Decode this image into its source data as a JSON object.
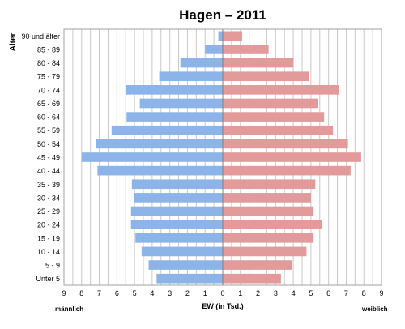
{
  "chart_data": {
    "type": "bar",
    "orientation": "horizontal",
    "layout": "population-pyramid",
    "title": "Hagen – 2011",
    "xlabel": "EW (in Tsd.)",
    "ylabel": "Alter",
    "left_label": "männlich",
    "right_label": "weiblich",
    "x_tick_labels": [
      "9",
      "8",
      "7",
      "6",
      "5",
      "4",
      "3",
      "2",
      "1",
      "0",
      "1",
      "2",
      "3",
      "4",
      "5",
      "6",
      "7",
      "8",
      "9"
    ],
    "xlim": [
      -9,
      9
    ],
    "grid": true,
    "categories": [
      "90 und älter",
      "85 - 89",
      "80 - 84",
      "75 - 79",
      "70 - 74",
      "65 - 69",
      "60 - 64",
      "55 - 59",
      "50 - 54",
      "45 - 49",
      "40 - 44",
      "35 - 39",
      "30 - 34",
      "25 - 29",
      "20 - 24",
      "15 - 19",
      "10 - 14",
      "5 - 9",
      "Unter 5"
    ],
    "series": [
      {
        "key": "maennlich",
        "color": "#8db4e8",
        "values": [
          0.25,
          1.0,
          2.4,
          3.6,
          5.5,
          4.7,
          5.45,
          6.3,
          7.2,
          8.0,
          7.1,
          5.15,
          5.05,
          5.2,
          5.2,
          4.95,
          4.6,
          4.2,
          3.75
        ]
      },
      {
        "key": "weiblich",
        "color": "#e29a9a",
        "values": [
          1.1,
          2.6,
          4.0,
          4.9,
          6.6,
          5.4,
          5.75,
          6.25,
          7.1,
          7.85,
          7.25,
          5.25,
          5.0,
          5.15,
          5.65,
          5.15,
          4.75,
          3.95,
          3.3
        ]
      }
    ]
  }
}
